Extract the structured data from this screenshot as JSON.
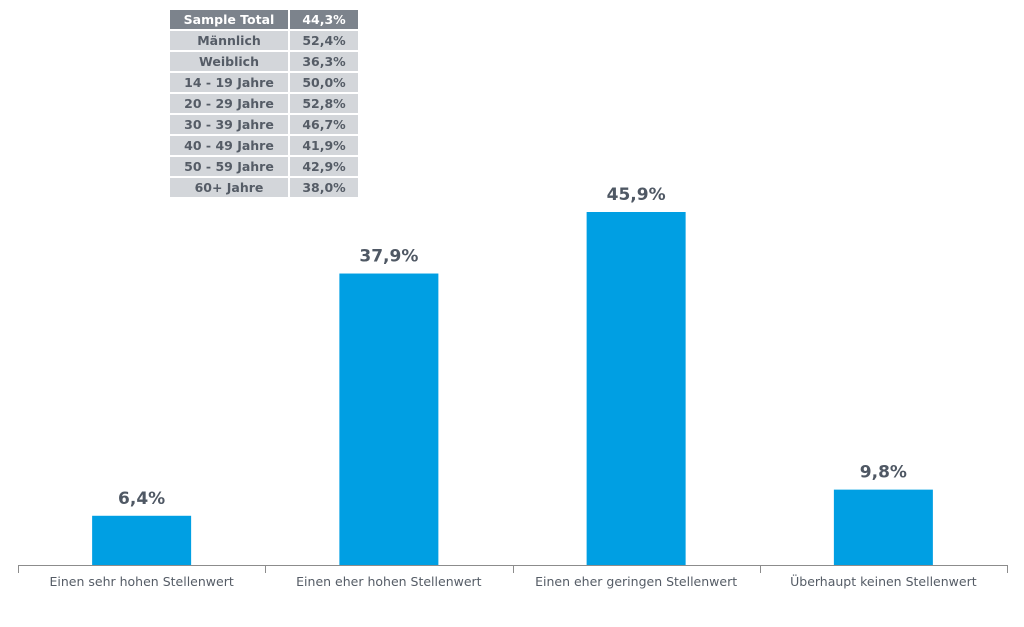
{
  "table": {
    "header": {
      "label": "Sample Total",
      "value": "44,3%"
    },
    "rows": [
      {
        "label": "Männlich",
        "value": "52,4%"
      },
      {
        "label": "Weiblich",
        "value": "36,3%"
      },
      {
        "label": "14 - 19 Jahre",
        "value": "50,0%"
      },
      {
        "label": "20 - 29 Jahre",
        "value": "52,8%"
      },
      {
        "label": "30 - 39 Jahre",
        "value": "46,7%"
      },
      {
        "label": "40 - 49 Jahre",
        "value": "41,9%"
      },
      {
        "label": "50 - 59 Jahre",
        "value": "42,9%"
      },
      {
        "label": "60+ Jahre",
        "value": "38,0%"
      }
    ]
  },
  "chart_data": {
    "type": "bar",
    "categories": [
      "Einen sehr hohen Stellenwert",
      "Einen eher hohen Stellenwert",
      "Einen eher geringen Stellenwert",
      "Überhaupt keinen Stellenwert"
    ],
    "values": [
      6.4,
      37.9,
      45.9,
      9.8
    ],
    "value_labels": [
      "6,4%",
      "37,9%",
      "45,9%",
      "9,8%"
    ],
    "bar_color": "#009fe3",
    "label_color": "#4f5864",
    "axis_color": "#8c8c8c",
    "grid": false,
    "legend": "none"
  }
}
